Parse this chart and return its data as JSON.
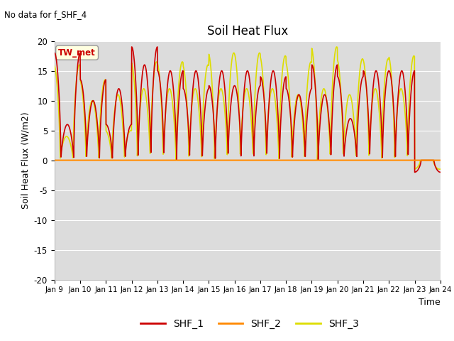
{
  "title": "Soil Heat Flux",
  "top_left_text": "No data for f_SHF_4",
  "xlabel": "Time",
  "ylabel": "Soil Heat Flux (W/m2)",
  "ylim": [
    -20,
    20
  ],
  "yticks": [
    -20,
    -15,
    -10,
    -5,
    0,
    5,
    10,
    15,
    20
  ],
  "xtick_labels": [
    "Jan 9",
    "Jan 10",
    "Jan 11",
    "Jan 12",
    "Jan 13",
    "Jan 14",
    "Jan 15",
    "Jan 16",
    "Jan 17",
    "Jan 18",
    "Jan 19",
    "Jan 20",
    "Jan 21",
    "Jan 22",
    "Jan 23",
    "Jan 24"
  ],
  "legend_box_label": "TW_met",
  "legend_entries": [
    "SHF_1",
    "SHF_2",
    "SHF_3"
  ],
  "colors": {
    "SHF_1": "#cc0000",
    "SHF_2": "#ff8800",
    "SHF_3": "#dddd00",
    "background": "#dcdcdc"
  },
  "linewidth": 1.2
}
